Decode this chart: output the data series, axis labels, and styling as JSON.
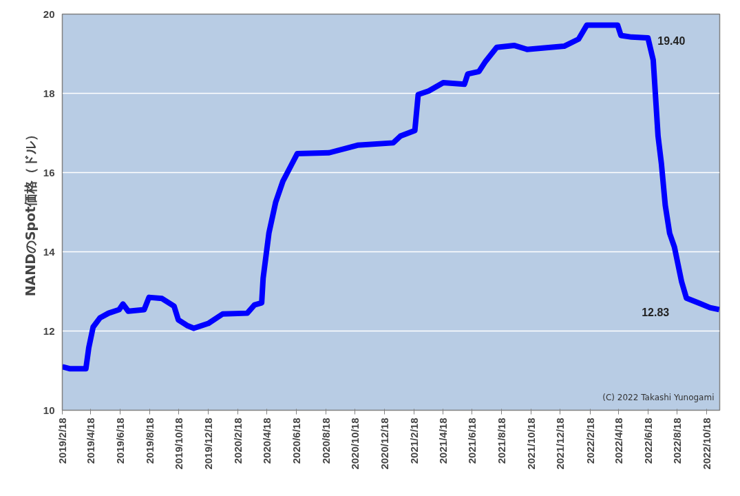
{
  "chart_data": {
    "type": "line",
    "ylabel": "NANDのSpot価格（ドル）",
    "x": [
      "2019-02-18",
      "2019-03-05",
      "2019-04-08",
      "2019-04-14",
      "2019-04-23",
      "2019-05-07",
      "2019-05-25",
      "2019-06-16",
      "2019-06-24",
      "2019-07-05",
      "2019-08-07",
      "2019-08-17",
      "2019-09-13",
      "2019-10-08",
      "2019-10-17",
      "2019-11-04",
      "2019-11-18",
      "2019-12-18",
      "2020-01-17",
      "2020-03-08",
      "2020-03-23",
      "2020-04-07",
      "2020-04-10",
      "2020-04-22",
      "2020-05-06",
      "2020-05-21",
      "2020-06-05",
      "2020-06-20",
      "2020-08-25",
      "2020-10-23",
      "2021-01-05",
      "2021-01-20",
      "2021-02-19",
      "2021-02-26",
      "2021-03-20",
      "2021-04-19",
      "2021-06-02",
      "2021-06-09",
      "2021-07-02",
      "2021-07-16",
      "2021-08-08",
      "2021-09-13",
      "2021-10-10",
      "2021-12-26",
      "2022-01-25",
      "2022-02-11",
      "2022-04-16",
      "2022-04-23",
      "2022-05-15",
      "2022-06-18",
      "2022-06-29",
      "2022-07-09",
      "2022-07-16",
      "2022-07-24",
      "2022-08-02",
      "2022-08-12",
      "2022-08-27",
      "2022-09-06",
      "2022-10-03",
      "2022-10-25",
      "2022-11-13"
    ],
    "series": [
      {
        "color": "#0000ff",
        "values": [
          11.1,
          11.05,
          11.05,
          11.58,
          12.1,
          12.33,
          12.45,
          12.54,
          12.68,
          12.5,
          12.54,
          12.85,
          12.82,
          12.63,
          12.28,
          12.14,
          12.07,
          12.19,
          12.43,
          12.45,
          12.66,
          12.71,
          13.33,
          14.47,
          15.25,
          15.78,
          16.13,
          16.48,
          16.5,
          16.69,
          16.75,
          16.92,
          17.06,
          17.97,
          18.06,
          18.27,
          18.23,
          18.49,
          18.55,
          18.81,
          19.16,
          19.21,
          19.11,
          19.19,
          19.37,
          19.72,
          19.72,
          19.46,
          19.42,
          19.4,
          18.84,
          16.92,
          16.22,
          15.17,
          14.47,
          14.12,
          13.24,
          12.83,
          12.7,
          12.59,
          12.54
        ]
      }
    ],
    "xlim": [
      "2019-02-18",
      "2022-11-14"
    ],
    "xticks": [
      {
        "value": "2019-02-18",
        "label": "2019/2/18"
      },
      {
        "value": "2019-04-18",
        "label": "2019/4/18"
      },
      {
        "value": "2019-06-18",
        "label": "2019/6/18"
      },
      {
        "value": "2019-08-18",
        "label": "2019/8/18"
      },
      {
        "value": "2019-10-18",
        "label": "2019/10/18"
      },
      {
        "value": "2019-12-18",
        "label": "2019/12/18"
      },
      {
        "value": "2020-02-18",
        "label": "2020/2/18"
      },
      {
        "value": "2020-04-18",
        "label": "2020/4/18"
      },
      {
        "value": "2020-06-18",
        "label": "2020/6/18"
      },
      {
        "value": "2020-08-18",
        "label": "2020/8/18"
      },
      {
        "value": "2020-10-18",
        "label": "2020/10/18"
      },
      {
        "value": "2020-12-18",
        "label": "2020/12/18"
      },
      {
        "value": "2021-02-18",
        "label": "2021/2/18"
      },
      {
        "value": "2021-04-18",
        "label": "2021/4/18"
      },
      {
        "value": "2021-06-18",
        "label": "2021/6/18"
      },
      {
        "value": "2021-08-18",
        "label": "2021/8/18"
      },
      {
        "value": "2021-10-18",
        "label": "2021/10/18"
      },
      {
        "value": "2021-12-18",
        "label": "2021/12/18"
      },
      {
        "value": "2022-02-18",
        "label": "2022/2/18"
      },
      {
        "value": "2022-04-18",
        "label": "2022/4/18"
      },
      {
        "value": "2022-06-18",
        "label": "2022/6/18"
      },
      {
        "value": "2022-08-18",
        "label": "2022/8/18"
      },
      {
        "value": "2022-10-18",
        "label": "2022/10/18"
      }
    ],
    "ylim": [
      10,
      20
    ],
    "yticks": [
      10,
      12,
      14,
      16,
      18,
      20
    ],
    "grid": "y",
    "marker": "none",
    "line_style": "solid",
    "annotations": [
      {
        "text": "19.40",
        "x": "2022-06-18",
        "y": 19.4
      },
      {
        "text": "12.83",
        "x": "2022-09-06",
        "y": 12.83
      },
      "(C) 2022 Takashi Yunogami"
    ]
  }
}
